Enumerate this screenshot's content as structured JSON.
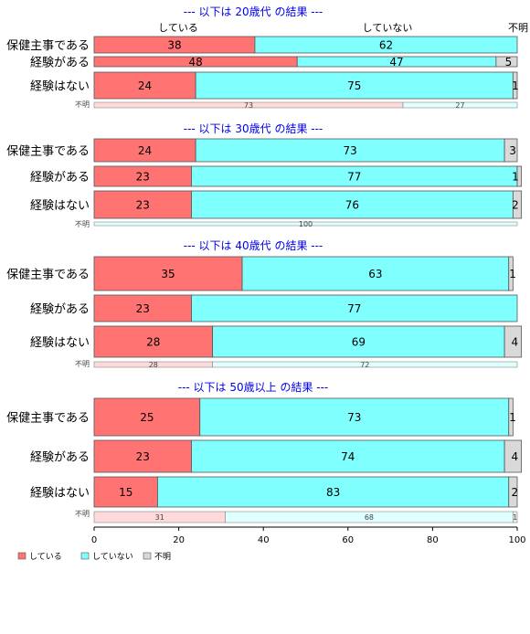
{
  "chart_data": {
    "type": "bar",
    "stacked": "horizontal-100-percent",
    "legend": [
      "している",
      "していない",
      "不明"
    ],
    "legend_placement": "bottom-left",
    "colors": {
      "yes": "#ff7373",
      "no": "#80ffff",
      "unknown": "#d9d9d9"
    },
    "column_headers": [
      "している",
      "していない",
      "不明"
    ],
    "xticks": [
      "0",
      "20",
      "40",
      "60",
      "80",
      "100"
    ],
    "xlim": [
      0,
      100
    ],
    "groups": [
      {
        "title": "--- 以下は 20歳代 の結果 ---",
        "rows": [
          {
            "label": "保健主事である",
            "values": [
              38,
              62,
              0
            ],
            "labels": [
              "38",
              "62",
              ""
            ]
          },
          {
            "label": "経験がある",
            "values": [
              48,
              47,
              5
            ],
            "labels": [
              "48",
              "47",
              "5"
            ]
          },
          {
            "label": "経験はない",
            "values": [
              24,
              75,
              1
            ],
            "labels": [
              "24",
              "75",
              "1"
            ]
          }
        ],
        "summary": {
          "label": "不明",
          "values": [
            73,
            27,
            0
          ],
          "labels": [
            "73",
            "27",
            ""
          ]
        }
      },
      {
        "title": "--- 以下は 30歳代 の結果 ---",
        "rows": [
          {
            "label": "保健主事である",
            "values": [
              24,
              73,
              3
            ],
            "labels": [
              "24",
              "73",
              "3"
            ]
          },
          {
            "label": "経験がある",
            "values": [
              23,
              77,
              1
            ],
            "labels": [
              "23",
              "77",
              "1"
            ]
          },
          {
            "label": "経験はない",
            "values": [
              23,
              76,
              2
            ],
            "labels": [
              "23",
              "76",
              "2"
            ]
          }
        ],
        "summary": {
          "label": "不明",
          "values": [
            0,
            100,
            0
          ],
          "labels": [
            "",
            "100",
            ""
          ]
        }
      },
      {
        "title": "--- 以下は 40歳代 の結果 ---",
        "rows": [
          {
            "label": "保健主事である",
            "values": [
              35,
              63,
              1
            ],
            "labels": [
              "35",
              "63",
              "1"
            ]
          },
          {
            "label": "経験がある",
            "values": [
              23,
              77,
              0
            ],
            "labels": [
              "23",
              "77",
              ""
            ]
          },
          {
            "label": "経験はない",
            "values": [
              28,
              69,
              4
            ],
            "labels": [
              "28",
              "69",
              "4"
            ]
          }
        ],
        "summary": {
          "label": "不明",
          "values": [
            28,
            72,
            0
          ],
          "labels": [
            "28",
            "72",
            ""
          ]
        }
      },
      {
        "title": "--- 以下は 50歳以上 の結果 ---",
        "rows": [
          {
            "label": "保健主事である",
            "values": [
              25,
              73,
              1
            ],
            "labels": [
              "25",
              "73",
              "1"
            ]
          },
          {
            "label": "経験がある",
            "values": [
              23,
              74,
              4
            ],
            "labels": [
              "23",
              "74",
              "4"
            ]
          },
          {
            "label": "経験はない",
            "values": [
              15,
              83,
              2
            ],
            "labels": [
              "15",
              "83",
              "2"
            ]
          }
        ],
        "summary": {
          "label": "不明",
          "values": [
            31,
            68,
            1
          ],
          "labels": [
            "31",
            "68",
            "1"
          ]
        }
      }
    ]
  }
}
